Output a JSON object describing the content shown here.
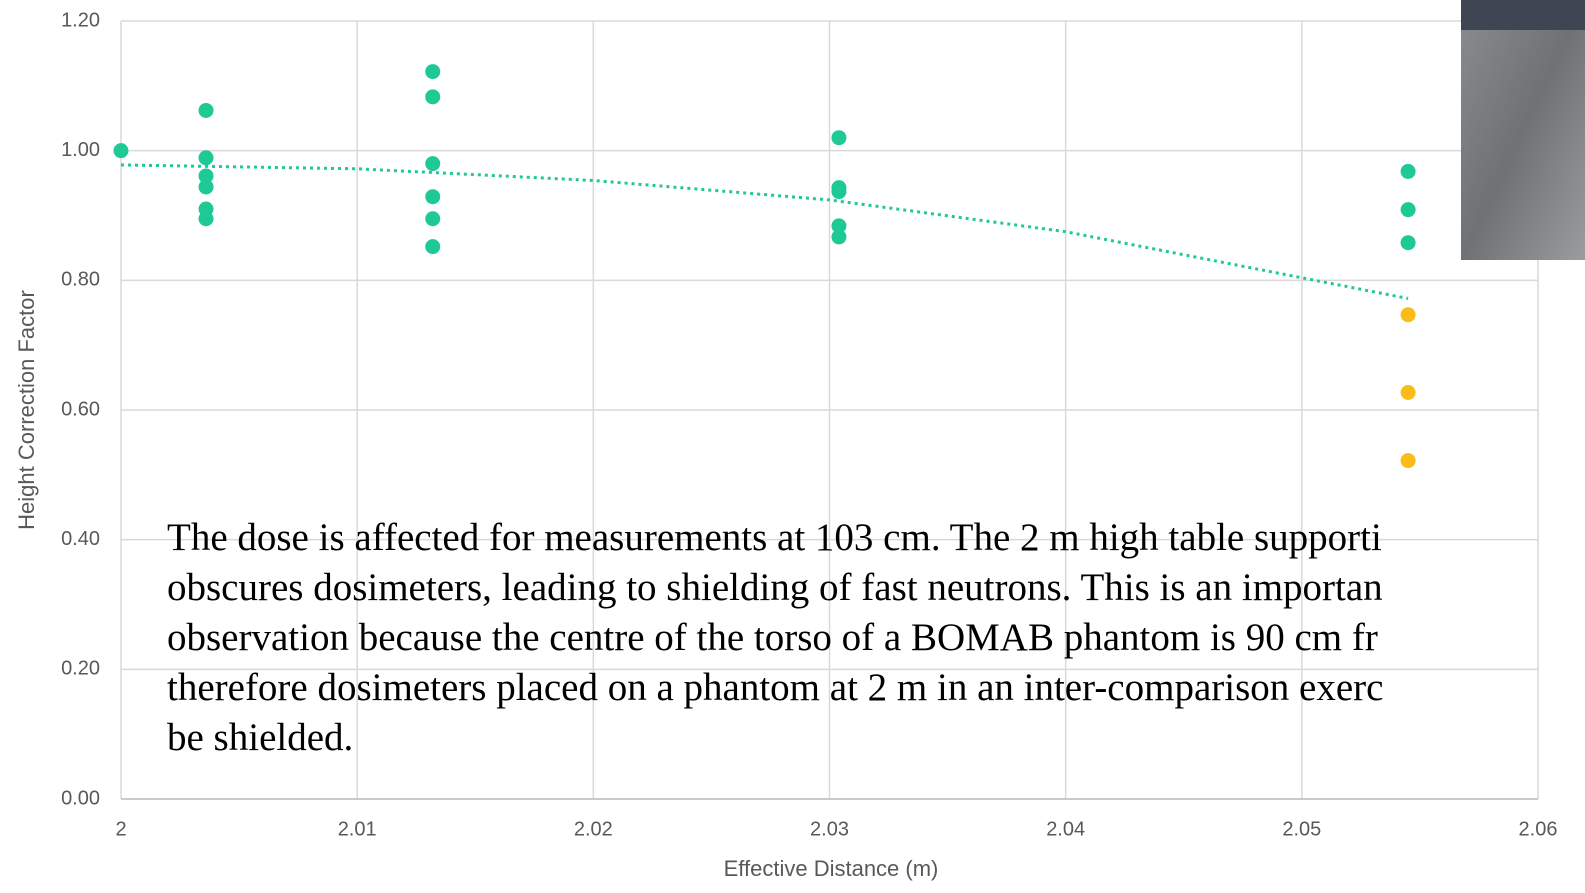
{
  "chart_data": {
    "type": "scatter",
    "x_label": "Effective Distance (m)",
    "y_label": "Height Correction Factor",
    "xlim": [
      2,
      2.06
    ],
    "xticks": [
      2,
      2.01,
      2.02,
      2.03,
      2.04,
      2.05,
      2.06
    ],
    "ylim": [
      0,
      1.2
    ],
    "yticks": [
      {
        "value": 0,
        "label": "0.00"
      },
      {
        "value": 0.2,
        "label": "0.20"
      },
      {
        "value": 0.4,
        "label": "0.40"
      },
      {
        "value": 0.6,
        "label": "0.60"
      },
      {
        "value": 0.8,
        "label": "0.80"
      },
      {
        "value": 1.0,
        "label": "1.00"
      },
      {
        "value": 1.2,
        "label": "1.20"
      }
    ],
    "grid": true,
    "series": [
      {
        "color": "#1fc995",
        "x": [
          2,
          2.0036,
          2.0036,
          2.0036,
          2.0036,
          2.0036,
          2.0036,
          2.0132,
          2.0132,
          2.0132,
          2.0132,
          2.0132,
          2.0132,
          2.0304,
          2.0304,
          2.0304,
          2.0304,
          2.0304,
          2.0545,
          2.0545,
          2.0545
        ],
        "values": [
          1.0,
          1.062,
          0.989,
          0.961,
          0.944,
          0.91,
          0.895,
          1.122,
          1.083,
          0.98,
          0.929,
          0.895,
          0.852,
          1.02,
          0.943,
          0.937,
          0.884,
          0.867,
          0.968,
          0.909,
          0.858
        ]
      },
      {
        "color": "#fbbc1a",
        "x": [
          2.0545,
          2.0545,
          2.0545
        ],
        "values": [
          0.747,
          0.627,
          0.522
        ]
      },
      {
        "color": "#1fc995",
        "style": "dotted-line",
        "x": [
          2,
          2.01,
          2.02,
          2.03,
          2.04,
          2.0545
        ],
        "values": [
          0.978,
          0.972,
          0.954,
          0.924,
          0.875,
          0.772
        ]
      }
    ],
    "annotation": [
      "The dose is affected for measurements at 103 cm. The 2 m high table supporti",
      "obscures dosimeters, leading to shielding of fast neutrons. This is an importan",
      "observation because the centre of the torso of a BOMAB phantom is 90 cm fr",
      "therefore dosimeters placed on a phantom at 2 m in an inter-comparison exerc",
      "be shielded."
    ]
  }
}
